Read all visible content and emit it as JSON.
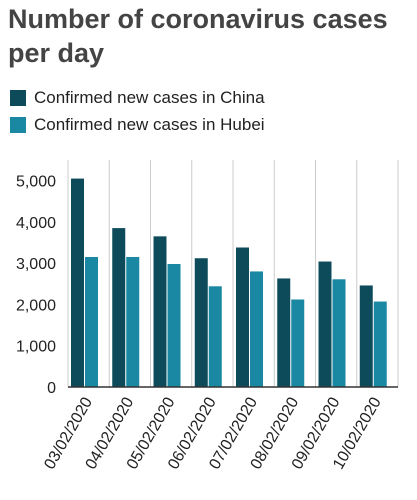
{
  "title": "Number of coronavirus cases per day",
  "colors": {
    "china": "#0d4b5b",
    "hubei": "#1a87a3",
    "grid": "#cccccc",
    "axis": "#333333"
  },
  "chart_data": {
    "type": "bar",
    "title": "Number of coronavirus cases per day",
    "xlabel": "",
    "ylabel": "",
    "ylim": [
      0,
      5500
    ],
    "yticks": [
      0,
      1000,
      2000,
      3000,
      4000,
      5000
    ],
    "ytick_labels": [
      "0",
      "1,000",
      "2,000",
      "3,000",
      "4,000",
      "5,000"
    ],
    "grid": "vertical",
    "legend_position": "top-left",
    "categories": [
      "03/02/2020",
      "04/02/2020",
      "05/02/2020",
      "06/02/2020",
      "07/02/2020",
      "08/02/2020",
      "09/02/2020",
      "10/02/2020"
    ],
    "series": [
      {
        "name": "Confirmed new cases in China",
        "values": [
          5050,
          3850,
          3650,
          3120,
          3380,
          2630,
          3040,
          2460
        ]
      },
      {
        "name": "Confirmed new cases in Hubei",
        "values": [
          3150,
          3150,
          2980,
          2440,
          2800,
          2120,
          2610,
          2070
        ]
      }
    ]
  }
}
